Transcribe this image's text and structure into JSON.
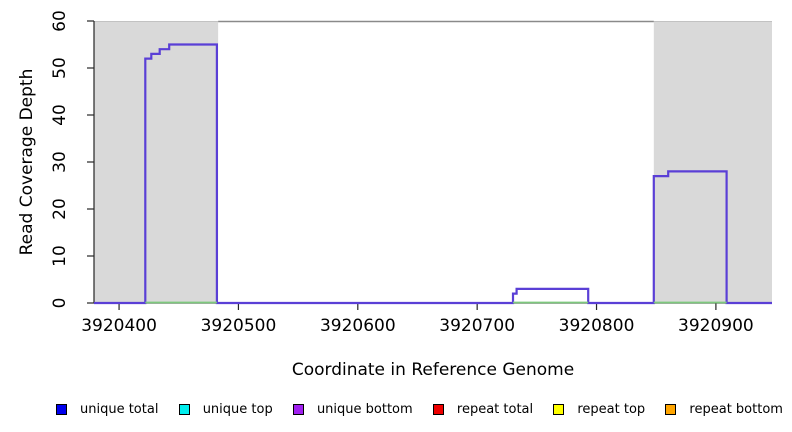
{
  "chart_data": {
    "type": "line",
    "subtype": "step-coverage",
    "title": "",
    "xlabel": "Coordinate in Reference Genome",
    "ylabel": "Read Coverage Depth",
    "xlim": [
      3920379,
      3920947
    ],
    "ylim": [
      0,
      60
    ],
    "xticks": [
      3920400,
      3920500,
      3920600,
      3920700,
      3920800,
      3920900
    ],
    "xtick_labels": [
      "3920400",
      "3920500",
      "3920600",
      "3920700",
      "3920800",
      "3920900"
    ],
    "yticks": [
      0,
      10,
      20,
      30,
      40,
      50,
      60
    ],
    "ytick_labels": [
      "0",
      "10",
      "20",
      "30",
      "40",
      "50",
      "60"
    ],
    "grid": false,
    "background": "#ffffff",
    "shaded_regions": [
      {
        "name": "left-masked-region",
        "x1": 3920379,
        "x2": 3920483,
        "fill": "#d9d9d9",
        "top_edge": "#c2c2c2"
      },
      {
        "name": "right-masked-region",
        "x1": 3920848,
        "x2": 3920947,
        "fill": "#d9d9d9",
        "top_edge": "#c2c2c2"
      }
    ],
    "top_boundary_line": {
      "y": 60,
      "x1": 3920483,
      "x2": 3920848,
      "color": "#8a8a8a"
    },
    "axis_color": "#262626",
    "series": [
      {
        "name": "unique coverage",
        "color": "#5a3fd6",
        "points": [
          [
            3920379,
            0
          ],
          [
            3920422,
            0
          ],
          [
            3920422,
            52
          ],
          [
            3920427,
            52
          ],
          [
            3920427,
            53
          ],
          [
            3920434,
            53
          ],
          [
            3920434,
            54
          ],
          [
            3920442,
            54
          ],
          [
            3920442,
            55
          ],
          [
            3920482,
            55
          ],
          [
            3920482,
            0
          ],
          [
            3920730,
            0
          ],
          [
            3920730,
            2
          ],
          [
            3920733,
            2
          ],
          [
            3920733,
            3
          ],
          [
            3920793,
            3
          ],
          [
            3920793,
            0
          ],
          [
            3920848,
            0
          ],
          [
            3920848,
            27
          ],
          [
            3920860,
            27
          ],
          [
            3920860,
            28
          ],
          [
            3920909,
            28
          ],
          [
            3920909,
            0
          ],
          [
            3920947,
            0
          ]
        ]
      },
      {
        "name": "zero-baseline",
        "color": "#7dc87d",
        "y": 0,
        "segments": [
          [
            3920422,
            3920482
          ],
          [
            3920730,
            3920793
          ],
          [
            3920848,
            3920909
          ]
        ]
      }
    ],
    "legend": {
      "position": "bottom",
      "items": [
        {
          "label": "unique total",
          "color": "#0000ee"
        },
        {
          "label": "unique top",
          "color": "#00eeee"
        },
        {
          "label": "unique bottom",
          "color": "#a020f0"
        },
        {
          "label": "repeat total",
          "color": "#ee0000"
        },
        {
          "label": "repeat top",
          "color": "#ffff00"
        },
        {
          "label": "repeat bottom",
          "color": "#ffa500"
        }
      ]
    }
  }
}
